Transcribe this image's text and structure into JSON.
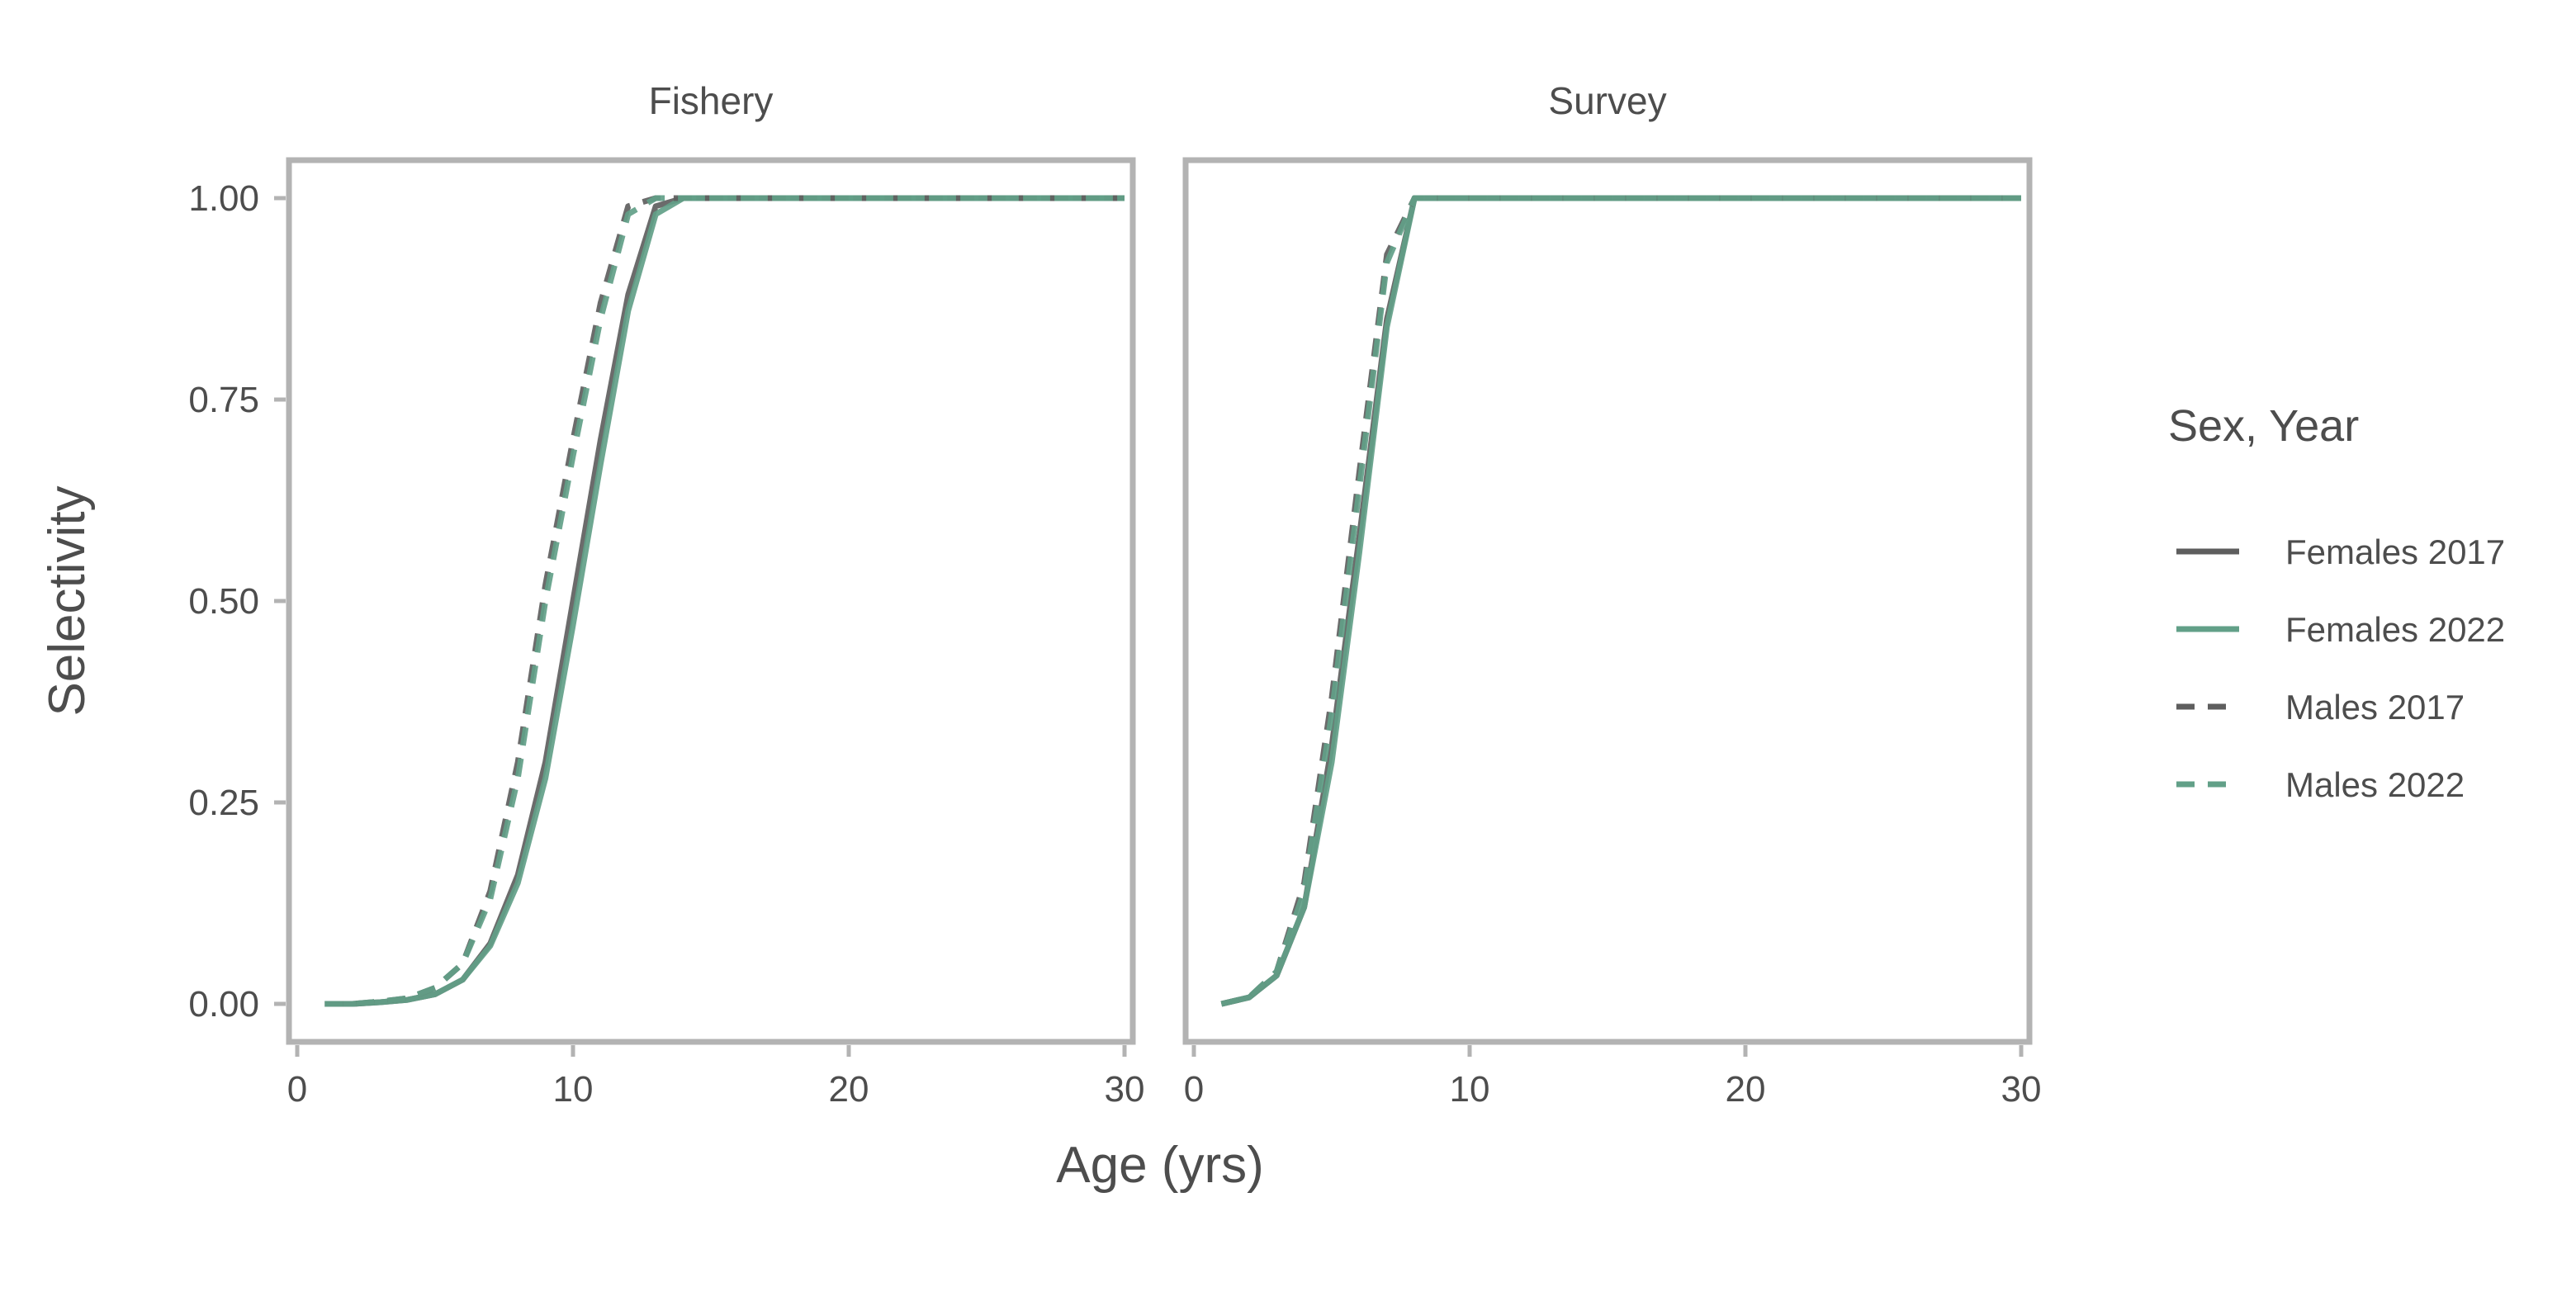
{
  "chart_data": {
    "type": "line",
    "xlabel": "Age (yrs)",
    "ylabel": "Selectivity",
    "xlim": [
      0,
      30
    ],
    "ylim": [
      0,
      1
    ],
    "x_ticks": [
      "0",
      "10",
      "20",
      "30"
    ],
    "y_ticks": [
      "0.00",
      "0.25",
      "0.50",
      "0.75",
      "1.00"
    ],
    "grid": false,
    "legend": {
      "title": "Sex, Year",
      "placement": "right",
      "entries": [
        {
          "label": "Females 2017",
          "color": "#5e5e5e",
          "dash": "solid"
        },
        {
          "label": "Females 2022",
          "color": "#62a088",
          "dash": "solid"
        },
        {
          "label": "Males 2017",
          "color": "#5e5e5e",
          "dash": "dashed"
        },
        {
          "label": "Males 2022",
          "color": "#62a088",
          "dash": "dashed"
        }
      ]
    },
    "x": [
      1,
      2,
      3,
      4,
      5,
      6,
      7,
      8,
      9,
      10,
      11,
      12,
      13,
      14,
      15,
      16,
      17,
      18,
      19,
      20,
      21,
      22,
      23,
      24,
      25,
      26,
      27,
      28,
      29,
      30
    ],
    "panels": [
      {
        "title": "Fishery",
        "series": [
          {
            "name": "Females 2017",
            "values": [
              0,
              0,
              0.002,
              0.005,
              0.012,
              0.03,
              0.075,
              0.16,
              0.3,
              0.5,
              0.7,
              0.88,
              0.99,
              1,
              1,
              1,
              1,
              1,
              1,
              1,
              1,
              1,
              1,
              1,
              1,
              1,
              1,
              1,
              1,
              1
            ]
          },
          {
            "name": "Females 2022",
            "values": [
              0,
              0,
              0.002,
              0.005,
              0.012,
              0.03,
              0.072,
              0.15,
              0.28,
              0.47,
              0.67,
              0.86,
              0.98,
              1,
              1,
              1,
              1,
              1,
              1,
              1,
              1,
              1,
              1,
              1,
              1,
              1,
              1,
              1,
              1,
              1
            ]
          },
          {
            "name": "Males 2017",
            "values": [
              0,
              0,
              0.003,
              0.007,
              0.02,
              0.05,
              0.14,
              0.3,
              0.52,
              0.7,
              0.87,
              0.99,
              1,
              1,
              1,
              1,
              1,
              1,
              1,
              1,
              1,
              1,
              1,
              1,
              1,
              1,
              1,
              1,
              1,
              1
            ]
          },
          {
            "name": "Males 2022",
            "values": [
              0,
              0,
              0.003,
              0.007,
              0.02,
              0.05,
              0.13,
              0.28,
              0.5,
              0.68,
              0.85,
              0.98,
              1,
              1,
              1,
              1,
              1,
              1,
              1,
              1,
              1,
              1,
              1,
              1,
              1,
              1,
              1,
              1,
              1,
              1
            ]
          }
        ]
      },
      {
        "title": "Survey",
        "series": [
          {
            "name": "Females 2017",
            "values": [
              0,
              0.008,
              0.035,
              0.12,
              0.32,
              0.58,
              0.85,
              1,
              1,
              1,
              1,
              1,
              1,
              1,
              1,
              1,
              1,
              1,
              1,
              1,
              1,
              1,
              1,
              1,
              1,
              1,
              1,
              1,
              1,
              1
            ]
          },
          {
            "name": "Females 2022",
            "values": [
              0,
              0.008,
              0.035,
              0.12,
              0.3,
              0.56,
              0.84,
              1,
              1,
              1,
              1,
              1,
              1,
              1,
              1,
              1,
              1,
              1,
              1,
              1,
              1,
              1,
              1,
              1,
              1,
              1,
              1,
              1,
              1,
              1
            ]
          },
          {
            "name": "Males 2017",
            "values": [
              0,
              0.008,
              0.04,
              0.15,
              0.38,
              0.66,
              0.93,
              1,
              1,
              1,
              1,
              1,
              1,
              1,
              1,
              1,
              1,
              1,
              1,
              1,
              1,
              1,
              1,
              1,
              1,
              1,
              1,
              1,
              1,
              1
            ]
          },
          {
            "name": "Males 2022",
            "values": [
              0,
              0.008,
              0.04,
              0.14,
              0.36,
              0.64,
              0.92,
              1,
              1,
              1,
              1,
              1,
              1,
              1,
              1,
              1,
              1,
              1,
              1,
              1,
              1,
              1,
              1,
              1,
              1,
              1,
              1,
              1,
              1,
              1
            ]
          }
        ]
      }
    ]
  }
}
